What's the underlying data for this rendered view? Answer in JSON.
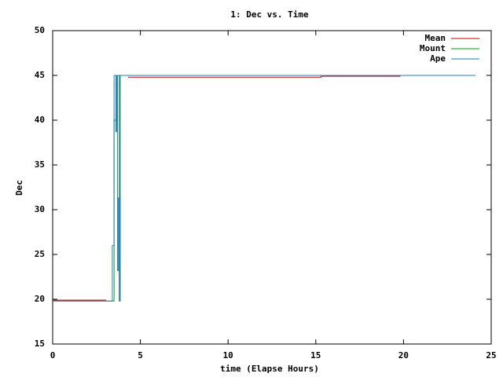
{
  "chart_data": {
    "type": "line",
    "title": "1: Dec vs. Time",
    "x_label": "time (Elapse Hours)",
    "y_label": "Dec",
    "xlim": [
      0,
      25
    ],
    "ylim": [
      15,
      50
    ],
    "xticks": [
      0,
      5,
      10,
      15,
      20,
      25
    ],
    "yticks": [
      15,
      20,
      25,
      30,
      35,
      40,
      45,
      50
    ],
    "legend": "top-right",
    "step": false,
    "series": [
      {
        "name": "Mean",
        "color": "#cc0000",
        "x": [
          0,
          3.05,
          null,
          4.3,
          15.3,
          15.3,
          19.8,
          19.8,
          23.9
        ],
        "values": [
          19.9,
          19.9,
          null,
          44.8,
          44.8,
          44.9,
          44.9,
          45,
          45
        ]
      },
      {
        "name": "Mount",
        "color": "#00a000",
        "x": [
          0,
          3.5,
          3.5,
          3.65,
          3.65,
          3.8,
          3.8,
          3.85,
          3.85,
          24.1
        ],
        "values": [
          19.8,
          19.8,
          40,
          40,
          45,
          45,
          19.8,
          19.8,
          45,
          45
        ]
      },
      {
        "name": "Ape",
        "color": "#1f7fbf",
        "x": [
          0,
          3.4,
          3.4,
          3.5,
          3.5,
          3.6,
          3.6,
          3.65,
          3.65,
          3.7,
          3.7,
          3.75,
          3.75,
          3.8,
          3.8,
          3.85,
          3.85,
          24.1
        ],
        "values": [
          19.8,
          19.8,
          26,
          26,
          45,
          45,
          38.7,
          38.7,
          45,
          45,
          23.2,
          23.2,
          31.3,
          31.3,
          19.8,
          19.8,
          45,
          45
        ]
      }
    ]
  }
}
